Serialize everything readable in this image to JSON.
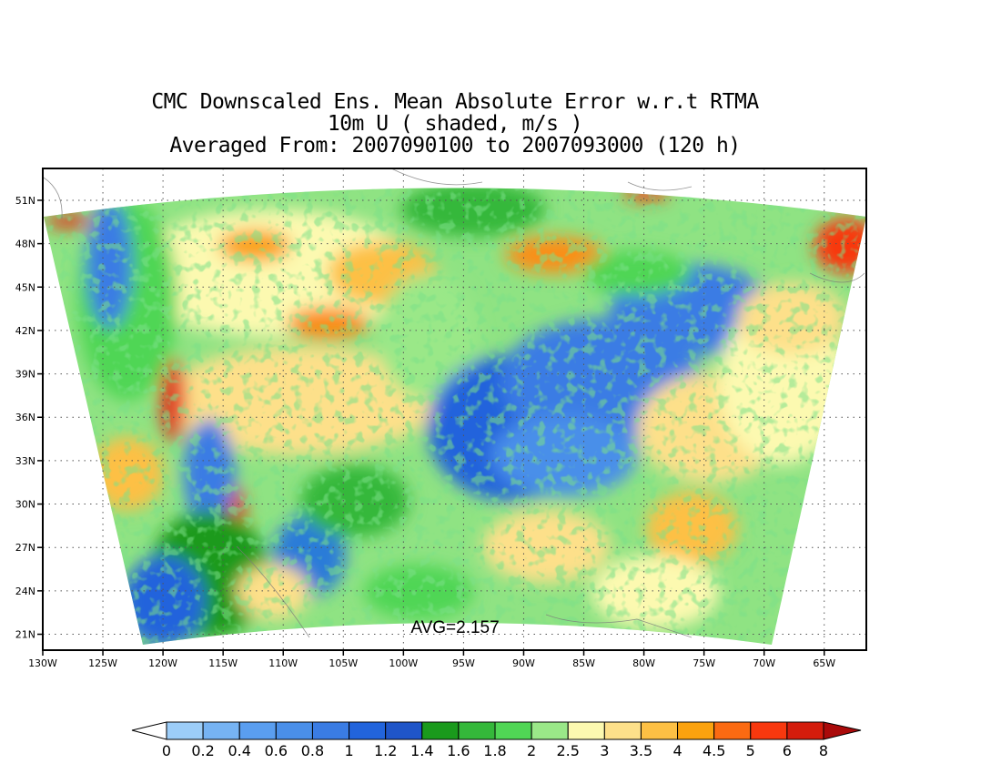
{
  "title": {
    "line1": "CMC Downscaled Ens. Mean Absolute Error w.r.t RTMA",
    "line2": "10m U ( shaded, m/s )",
    "line3": "Averaged From: 2007090100 to 2007093000 (120 h)"
  },
  "map": {
    "lon_range": [
      -130,
      -61.5
    ],
    "lat_range": [
      19.9,
      53.2
    ],
    "lon_ticks": [
      "130W",
      "125W",
      "120W",
      "115W",
      "110W",
      "105W",
      "100W",
      "95W",
      "90W",
      "85W",
      "80W",
      "75W",
      "70W",
      "65W"
    ],
    "lon_tick_values": [
      -130,
      -125,
      -120,
      -115,
      -110,
      -105,
      -100,
      -95,
      -90,
      -85,
      -80,
      -75,
      -70,
      -65
    ],
    "lat_ticks": [
      "21N",
      "24N",
      "27N",
      "30N",
      "33N",
      "36N",
      "39N",
      "42N",
      "45N",
      "48N",
      "51N"
    ],
    "lat_tick_values": [
      21,
      24,
      27,
      30,
      33,
      36,
      39,
      42,
      45,
      48,
      51
    ],
    "gridlines": "dotted",
    "avg_label": "AVG=2.157"
  },
  "colorbar": {
    "labels": [
      "0",
      "0.2",
      "0.4",
      "0.6",
      "0.8",
      "1",
      "1.2",
      "1.4",
      "1.6",
      "1.8",
      "2",
      "2.5",
      "3",
      "3.5",
      "4",
      "4.5",
      "5",
      "6",
      "8"
    ],
    "colors": [
      "#ffffff",
      "#9ccdf8",
      "#76b3f3",
      "#5a9ef0",
      "#4a8fe9",
      "#3a7ce4",
      "#2264dc",
      "#1f55c8",
      "#1a9a1c",
      "#34b83a",
      "#50d655",
      "#9ae888",
      "#fcf9b0",
      "#fde08a",
      "#fdc044",
      "#fba20e",
      "#fb6a12",
      "#f8380e",
      "#d41c0c",
      "#aa0a0a"
    ]
  }
}
